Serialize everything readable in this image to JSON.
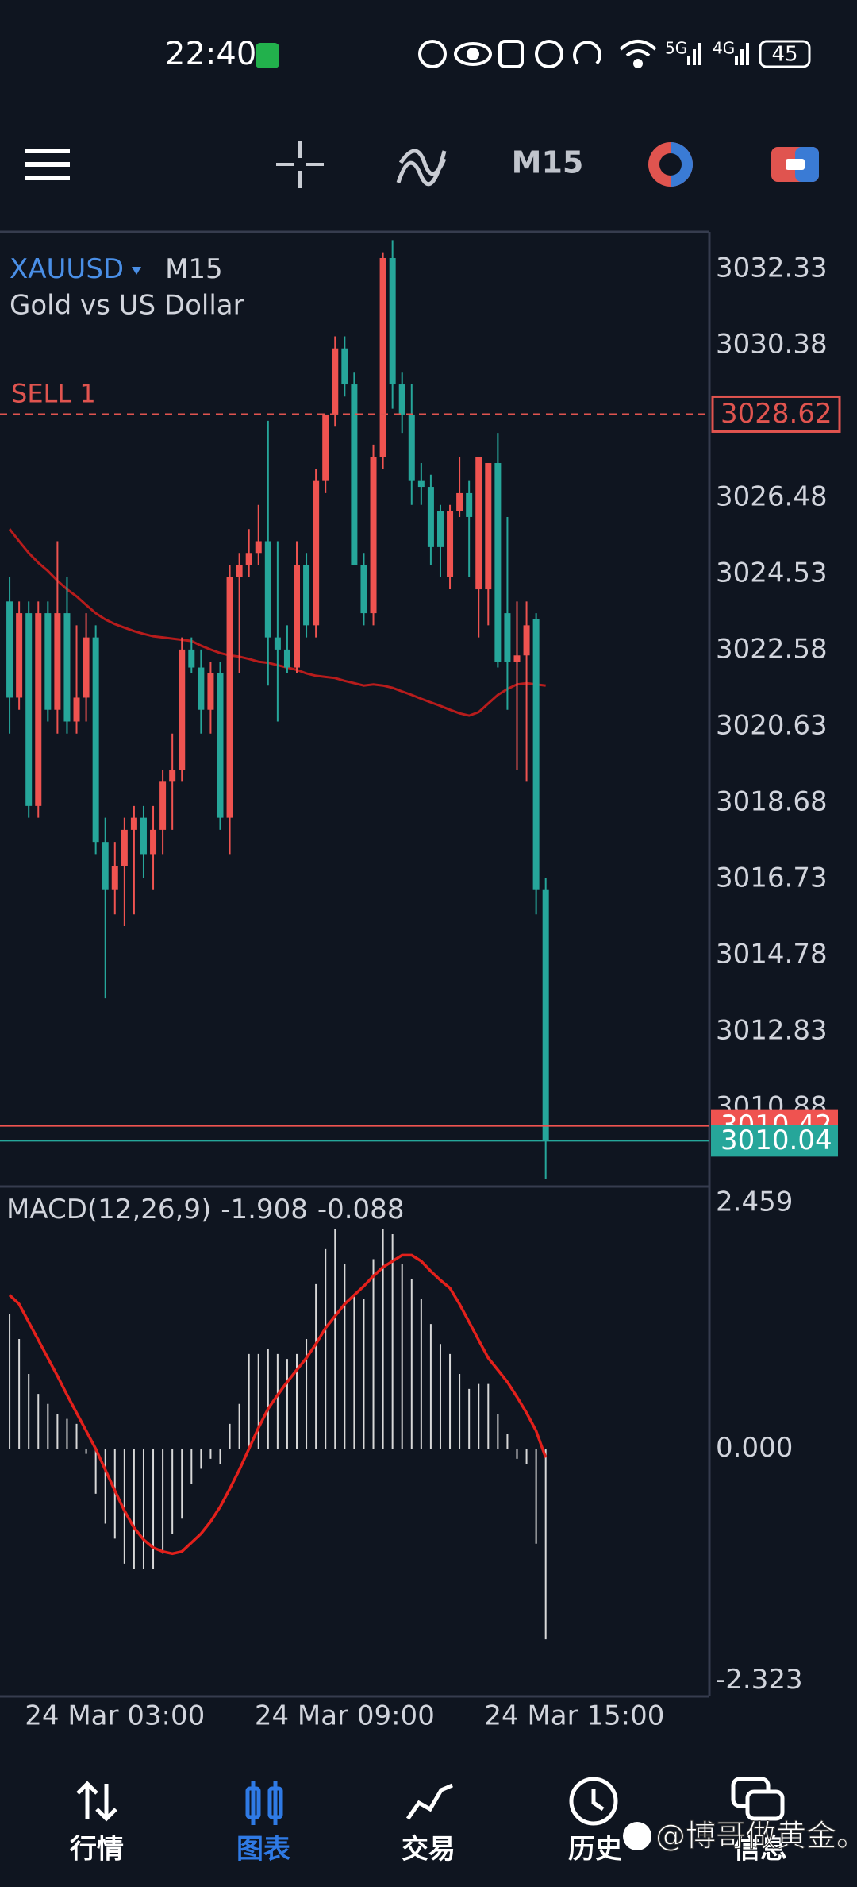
{
  "status_bar": {
    "time": "22:40",
    "net1": "5G",
    "net2": "4G",
    "battery": "45"
  },
  "toolbar": {
    "timeframe": "M15"
  },
  "chart_data": [
    {
      "type": "candlestick",
      "symbol": "XAUUSD",
      "timeframe": "M15",
      "subtitle": "Gold vs US Dollar",
      "up_color": "#ef5350",
      "down_color": "#26a69a",
      "xlim": [
        -1,
        73.1
      ],
      "ylim": [
        3008.91,
        3033.28
      ],
      "yticks": [
        3032.33,
        3030.38,
        3026.48,
        3024.53,
        3022.58,
        3020.63,
        3018.68,
        3016.73,
        3014.78,
        3012.83,
        3010.88
      ],
      "ohlc": [
        [
          3023.83,
          3024.45,
          3020.45,
          3021.37
        ],
        [
          3021.37,
          3023.83,
          3021.06,
          3023.53
        ],
        [
          3023.53,
          3023.83,
          3018.3,
          3018.6
        ],
        [
          3018.6,
          3023.83,
          3018.3,
          3023.53
        ],
        [
          3023.53,
          3023.83,
          3020.76,
          3021.06
        ],
        [
          3021.06,
          3025.37,
          3020.45,
          3023.53
        ],
        [
          3023.53,
          3024.45,
          3020.45,
          3020.76
        ],
        [
          3020.76,
          3023.22,
          3020.45,
          3021.37
        ],
        [
          3021.37,
          3023.53,
          3020.76,
          3022.91
        ],
        [
          3022.91,
          3023.22,
          3017.37,
          3017.68
        ],
        [
          3017.68,
          3018.3,
          3013.68,
          3016.45
        ],
        [
          3016.45,
          3017.68,
          3015.83,
          3017.06
        ],
        [
          3017.06,
          3018.3,
          3015.53,
          3017.99
        ],
        [
          3017.99,
          3018.6,
          3015.83,
          3018.3
        ],
        [
          3018.3,
          3018.6,
          3016.76,
          3017.37
        ],
        [
          3017.37,
          3018.6,
          3016.45,
          3017.99
        ],
        [
          3017.99,
          3019.53,
          3017.37,
          3019.22
        ],
        [
          3019.22,
          3020.45,
          3017.99,
          3019.53
        ],
        [
          3019.53,
          3022.91,
          3019.22,
          3022.6
        ],
        [
          3022.6,
          3022.91,
          3021.99,
          3022.14
        ],
        [
          3022.14,
          3022.6,
          3020.45,
          3021.06
        ],
        [
          3021.06,
          3022.29,
          3020.45,
          3021.99
        ],
        [
          3021.99,
          3022.29,
          3017.99,
          3018.3
        ],
        [
          3018.3,
          3024.76,
          3017.37,
          3024.45
        ],
        [
          3024.45,
          3025.07,
          3021.99,
          3024.76
        ],
        [
          3024.76,
          3025.68,
          3024.45,
          3025.07
        ],
        [
          3025.07,
          3026.3,
          3024.76,
          3025.37
        ],
        [
          3025.37,
          3028.45,
          3021.68,
          3022.91
        ],
        [
          3022.91,
          3025.37,
          3020.76,
          3022.6
        ],
        [
          3022.6,
          3023.22,
          3021.99,
          3022.14
        ],
        [
          3022.14,
          3025.37,
          3021.99,
          3024.76
        ],
        [
          3024.76,
          3025.07,
          3022.91,
          3023.22
        ],
        [
          3023.22,
          3027.22,
          3022.91,
          3026.91
        ],
        [
          3026.91,
          3028.61,
          3026.6,
          3028.61
        ],
        [
          3028.61,
          3030.61,
          3028.3,
          3030.3
        ],
        [
          3030.3,
          3030.61,
          3029.07,
          3029.38
        ],
        [
          3029.38,
          3029.68,
          3024.76,
          3024.76
        ],
        [
          3024.76,
          3025.07,
          3023.22,
          3023.53
        ],
        [
          3023.53,
          3027.84,
          3023.22,
          3027.53
        ],
        [
          3027.53,
          3032.76,
          3027.22,
          3032.61
        ],
        [
          3032.61,
          3033.07,
          3028.76,
          3029.38
        ],
        [
          3029.38,
          3029.68,
          3028.14,
          3028.61
        ],
        [
          3028.61,
          3029.38,
          3026.3,
          3026.91
        ],
        [
          3026.91,
          3027.37,
          3026.3,
          3026.76
        ],
        [
          3026.76,
          3027.07,
          3024.76,
          3025.22
        ],
        [
          3026.14,
          3026.3,
          3024.45,
          3025.22
        ],
        [
          3024.45,
          3026.3,
          3024.14,
          3026.14
        ],
        [
          3026.14,
          3027.53,
          3025.99,
          3026.6
        ],
        [
          3026.6,
          3026.91,
          3024.45,
          3025.99
        ],
        [
          3024.14,
          3027.53,
          3022.91,
          3027.53
        ],
        [
          3024.14,
          3027.37,
          3023.22,
          3027.37
        ],
        [
          3027.37,
          3028.14,
          3022.14,
          3022.29
        ],
        [
          3023.53,
          3025.99,
          3021.06,
          3022.29
        ],
        [
          3022.29,
          3023.83,
          3019.53,
          3022.45
        ],
        [
          3022.45,
          3023.83,
          3019.22,
          3023.22
        ],
        [
          3023.37,
          3023.53,
          3015.83,
          3016.45
        ],
        [
          3016.45,
          3016.76,
          3009.06,
          3010.04
        ]
      ],
      "ma": {
        "color": "#b71c1c",
        "values": [
          3025.68,
          3025.37,
          3025.07,
          3024.82,
          3024.61,
          3024.36,
          3024.14,
          3023.96,
          3023.74,
          3023.53,
          3023.37,
          3023.25,
          3023.16,
          3023.07,
          3023.0,
          3022.94,
          3022.91,
          3022.88,
          3022.85,
          3022.82,
          3022.7,
          3022.6,
          3022.51,
          3022.45,
          3022.42,
          3022.36,
          3022.29,
          3022.26,
          3022.2,
          3022.14,
          3022.08,
          3021.99,
          3021.93,
          3021.9,
          3021.87,
          3021.8,
          3021.74,
          3021.68,
          3021.71,
          3021.68,
          3021.62,
          3021.53,
          3021.44,
          3021.34,
          3021.25,
          3021.16,
          3021.06,
          3020.97,
          3020.91,
          3021.0,
          3021.22,
          3021.44,
          3021.59,
          3021.71,
          3021.74,
          3021.71,
          3021.68
        ]
      },
      "order_line": {
        "label": "SELL 1",
        "value": 3028.62,
        "color": "#e0544f"
      },
      "ask": {
        "value": 3010.42,
        "color": "#ef5350"
      },
      "bid": {
        "value": 3010.04,
        "color": "#26a69a"
      }
    },
    {
      "type": "bar",
      "title": "MACD(12,26,9)",
      "xlim": [
        -1,
        73.1
      ],
      "ylim": [
        -2.48,
        2.58
      ],
      "yticks": [
        2.459,
        {
          "value": 0,
          "label": "0.000"
        },
        -2.323
      ],
      "xticks": [
        {
          "value": 11,
          "label": "24 Mar 03:00"
        },
        {
          "value": 35,
          "label": "24 Mar 09:00"
        },
        {
          "value": 59,
          "label": "24 Mar 15:00"
        }
      ],
      "series": [
        {
          "color": "#d8d8d8",
          "values": [
            1.35,
            1.1,
            0.75,
            0.55,
            0.45,
            0.35,
            0.3,
            0.25,
            -0.05,
            -0.45,
            -0.75,
            -0.9,
            -1.15,
            -1.2,
            -1.2,
            -1.2,
            -1.05,
            -0.85,
            -0.7,
            -0.35,
            -0.2,
            -0.1,
            -0.15,
            0.25,
            0.45,
            0.95,
            0.95,
            1.0,
            0.95,
            0.9,
            0.95,
            1.1,
            1.65,
            2.0,
            2.2,
            1.85,
            1.55,
            1.5,
            1.9,
            2.2,
            2.15,
            1.85,
            1.7,
            1.5,
            1.25,
            1.05,
            0.95,
            0.75,
            0.6,
            0.65,
            0.65,
            0.35,
            0.15,
            -0.1,
            -0.15,
            -0.95,
            -1.908
          ]
        },
        {
          "type": "line",
          "color": "#e3201b",
          "values": [
            1.54,
            1.45,
            1.27,
            1.09,
            0.91,
            0.73,
            0.54,
            0.36,
            0.18,
            0.0,
            -0.21,
            -0.42,
            -0.62,
            -0.79,
            -0.91,
            -0.99,
            -1.03,
            -1.05,
            -1.03,
            -0.94,
            -0.85,
            -0.73,
            -0.58,
            -0.4,
            -0.21,
            0.0,
            0.21,
            0.4,
            0.54,
            0.67,
            0.79,
            0.91,
            1.05,
            1.21,
            1.33,
            1.45,
            1.54,
            1.63,
            1.73,
            1.82,
            1.88,
            1.94,
            1.94,
            1.88,
            1.78,
            1.69,
            1.61,
            1.45,
            1.27,
            1.09,
            0.91,
            0.79,
            0.67,
            0.52,
            0.36,
            0.18,
            -0.088
          ]
        }
      ]
    }
  ],
  "nav": [
    "行情",
    "图表",
    "交易",
    "历史",
    "信息"
  ],
  "watermark": "@博哥做黄金。"
}
